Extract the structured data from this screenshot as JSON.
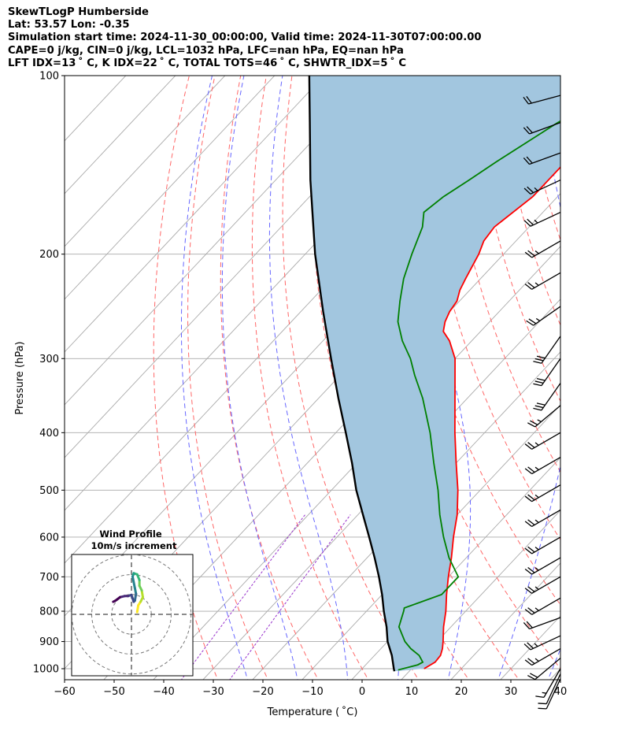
{
  "header": {
    "line1": "SkewTLogP Humberside",
    "line2": "Lat: 53.57   Lon: -0.35",
    "line3": "Simulation start time: 2024-11-30_00:00:00, Valid time: 2024-11-30T07:00:00.00",
    "line4": "CAPE=0 j/kg, CIN=0 j/kg, LCL=1032 hPa, LFC=nan hPa, EQ=nan hPa",
    "line5": "LFT IDX=13 ˚ C, K IDX=22 ˚ C, TOTAL TOTS=46 ˚ C, SHWTR_IDX=5 ˚ C"
  },
  "colors": {
    "temperature": "#ff0000",
    "dewpoint": "#008000",
    "parcel": "#000000",
    "cape_fill": "#a2c6df",
    "dry_adiabat": "#ff6666",
    "moist_adiabat": "#6666ff",
    "mixing_ratio": "#9933cc",
    "isotherm": "#aaaaaa"
  },
  "chart_data": {
    "type": "skewt",
    "xlabel": "Temperature ( ˚C)",
    "ylabel": "Pressure (hPa)",
    "xlim": [
      -60,
      40
    ],
    "ylim": [
      1040,
      100
    ],
    "x_ticks": [
      -60,
      -50,
      -40,
      -30,
      -20,
      -10,
      0,
      10,
      20,
      30,
      40
    ],
    "y_ticks": [
      1000,
      900,
      800,
      700,
      600,
      500,
      400,
      300,
      200,
      100
    ],
    "grid": true,
    "temperature_profile": [
      [
        1000,
        12.5
      ],
      [
        975,
        13.5
      ],
      [
        950,
        13.3
      ],
      [
        925,
        12.4
      ],
      [
        900,
        11.2
      ],
      [
        850,
        8.5
      ],
      [
        800,
        6.0
      ],
      [
        750,
        3.0
      ],
      [
        700,
        0.0
      ],
      [
        650,
        -3.0
      ],
      [
        600,
        -6.5
      ],
      [
        550,
        -10.0
      ],
      [
        500,
        -14.5
      ],
      [
        450,
        -20.0
      ],
      [
        400,
        -26.0
      ],
      [
        350,
        -32.5
      ],
      [
        300,
        -40.0
      ],
      [
        280,
        -44.5
      ],
      [
        270,
        -47.5
      ],
      [
        260,
        -49.0
      ],
      [
        250,
        -50.0
      ],
      [
        240,
        -50.5
      ],
      [
        230,
        -52.0
      ],
      [
        220,
        -53.0
      ],
      [
        200,
        -55.0
      ],
      [
        190,
        -56.5
      ],
      [
        180,
        -57.0
      ],
      [
        160,
        -55.0
      ],
      [
        140,
        -55.0
      ],
      [
        120,
        -55.0
      ],
      [
        110,
        -55.0
      ],
      [
        105,
        -55.0
      ],
      [
        100,
        -55.0
      ]
    ],
    "dewpoint_profile": [
      [
        1005,
        7.5
      ],
      [
        985,
        10.5
      ],
      [
        975,
        11.0
      ],
      [
        950,
        9.0
      ],
      [
        925,
        6.0
      ],
      [
        900,
        3.5
      ],
      [
        850,
        -0.5
      ],
      [
        800,
        -2.5
      ],
      [
        790,
        -3.0
      ],
      [
        750,
        2.0
      ],
      [
        700,
        2.0
      ],
      [
        650,
        -3.5
      ],
      [
        600,
        -8.5
      ],
      [
        550,
        -13.5
      ],
      [
        500,
        -18.5
      ],
      [
        450,
        -24.5
      ],
      [
        400,
        -31.0
      ],
      [
        350,
        -39.0
      ],
      [
        320,
        -45.0
      ],
      [
        300,
        -49.0
      ],
      [
        280,
        -54.0
      ],
      [
        260,
        -58.5
      ],
      [
        240,
        -62.0
      ],
      [
        220,
        -65.5
      ],
      [
        200,
        -68.5
      ],
      [
        180,
        -71.5
      ],
      [
        170,
        -74.0
      ],
      [
        160,
        -73.0
      ],
      [
        150,
        -71.0
      ],
      [
        140,
        -69.0
      ],
      [
        120,
        -64.0
      ],
      [
        100,
        -55.0
      ]
    ],
    "parcel_profile": [
      [
        1010,
        7.0
      ],
      [
        1000,
        6.4
      ],
      [
        950,
        3.5
      ],
      [
        900,
        0.0
      ],
      [
        850,
        -3.0
      ],
      [
        800,
        -6.5
      ],
      [
        750,
        -10.0
      ],
      [
        700,
        -14.0
      ],
      [
        650,
        -18.5
      ],
      [
        600,
        -23.5
      ],
      [
        550,
        -29.0
      ],
      [
        500,
        -35.0
      ],
      [
        450,
        -41.0
      ],
      [
        400,
        -48.0
      ],
      [
        350,
        -56.0
      ],
      [
        300,
        -65.0
      ],
      [
        250,
        -75.5
      ],
      [
        200,
        -88.0
      ],
      [
        150,
        -103.0
      ],
      [
        120,
        -114.0
      ],
      [
        100,
        -123.0
      ]
    ],
    "wind_barbs": [
      {
        "p": 1040,
        "speed_kt": 10,
        "dir_deg": 205
      },
      {
        "p": 1020,
        "speed_kt": 10,
        "dir_deg": 205
      },
      {
        "p": 1000,
        "speed_kt": 15,
        "dir_deg": 210
      },
      {
        "p": 960,
        "speed_kt": 20,
        "dir_deg": 230
      },
      {
        "p": 925,
        "speed_kt": 25,
        "dir_deg": 240
      },
      {
        "p": 880,
        "speed_kt": 25,
        "dir_deg": 245
      },
      {
        "p": 820,
        "speed_kt": 20,
        "dir_deg": 250
      },
      {
        "p": 760,
        "speed_kt": 25,
        "dir_deg": 240
      },
      {
        "p": 700,
        "speed_kt": 25,
        "dir_deg": 240
      },
      {
        "p": 650,
        "speed_kt": 25,
        "dir_deg": 240
      },
      {
        "p": 600,
        "speed_kt": 25,
        "dir_deg": 240
      },
      {
        "p": 540,
        "speed_kt": 25,
        "dir_deg": 240
      },
      {
        "p": 490,
        "speed_kt": 25,
        "dir_deg": 240
      },
      {
        "p": 440,
        "speed_kt": 25,
        "dir_deg": 240
      },
      {
        "p": 400,
        "speed_kt": 25,
        "dir_deg": 240
      },
      {
        "p": 360,
        "speed_kt": 25,
        "dir_deg": 230
      },
      {
        "p": 330,
        "speed_kt": 30,
        "dir_deg": 215
      },
      {
        "p": 300,
        "speed_kt": 30,
        "dir_deg": 215
      },
      {
        "p": 275,
        "speed_kt": 30,
        "dir_deg": 215
      },
      {
        "p": 245,
        "speed_kt": 25,
        "dir_deg": 235
      },
      {
        "p": 215,
        "speed_kt": 25,
        "dir_deg": 240
      },
      {
        "p": 190,
        "speed_kt": 25,
        "dir_deg": 240
      },
      {
        "p": 170,
        "speed_kt": 25,
        "dir_deg": 245
      },
      {
        "p": 150,
        "speed_kt": 25,
        "dir_deg": 245
      },
      {
        "p": 135,
        "speed_kt": 20,
        "dir_deg": 250
      },
      {
        "p": 120,
        "speed_kt": 20,
        "dir_deg": 250
      },
      {
        "p": 108,
        "speed_kt": 20,
        "dir_deg": 255
      }
    ],
    "hodograph": {
      "title": "Wind Profile",
      "subtitle": "10m/s increment",
      "rings": 3,
      "points": [
        [
          2.5,
          1.0
        ],
        [
          3.0,
          4.0
        ],
        [
          4.0,
          5.5
        ],
        [
          5.0,
          7.5
        ],
        [
          4.5,
          10.5
        ],
        [
          3.5,
          12.5
        ],
        [
          3.5,
          15.0
        ],
        [
          2.5,
          17.5
        ],
        [
          1.0,
          18.0
        ],
        [
          0.5,
          16.5
        ],
        [
          1.5,
          11.5
        ],
        [
          2.0,
          9.0
        ],
        [
          1.5,
          6.0
        ],
        [
          1.0,
          5.5
        ],
        [
          0.0,
          8.5
        ],
        [
          -1.5,
          8.0
        ],
        [
          -3.0,
          8.0
        ],
        [
          -5.0,
          7.5
        ],
        [
          -7.0,
          6.0
        ],
        [
          -8.0,
          5.5
        ]
      ]
    }
  }
}
